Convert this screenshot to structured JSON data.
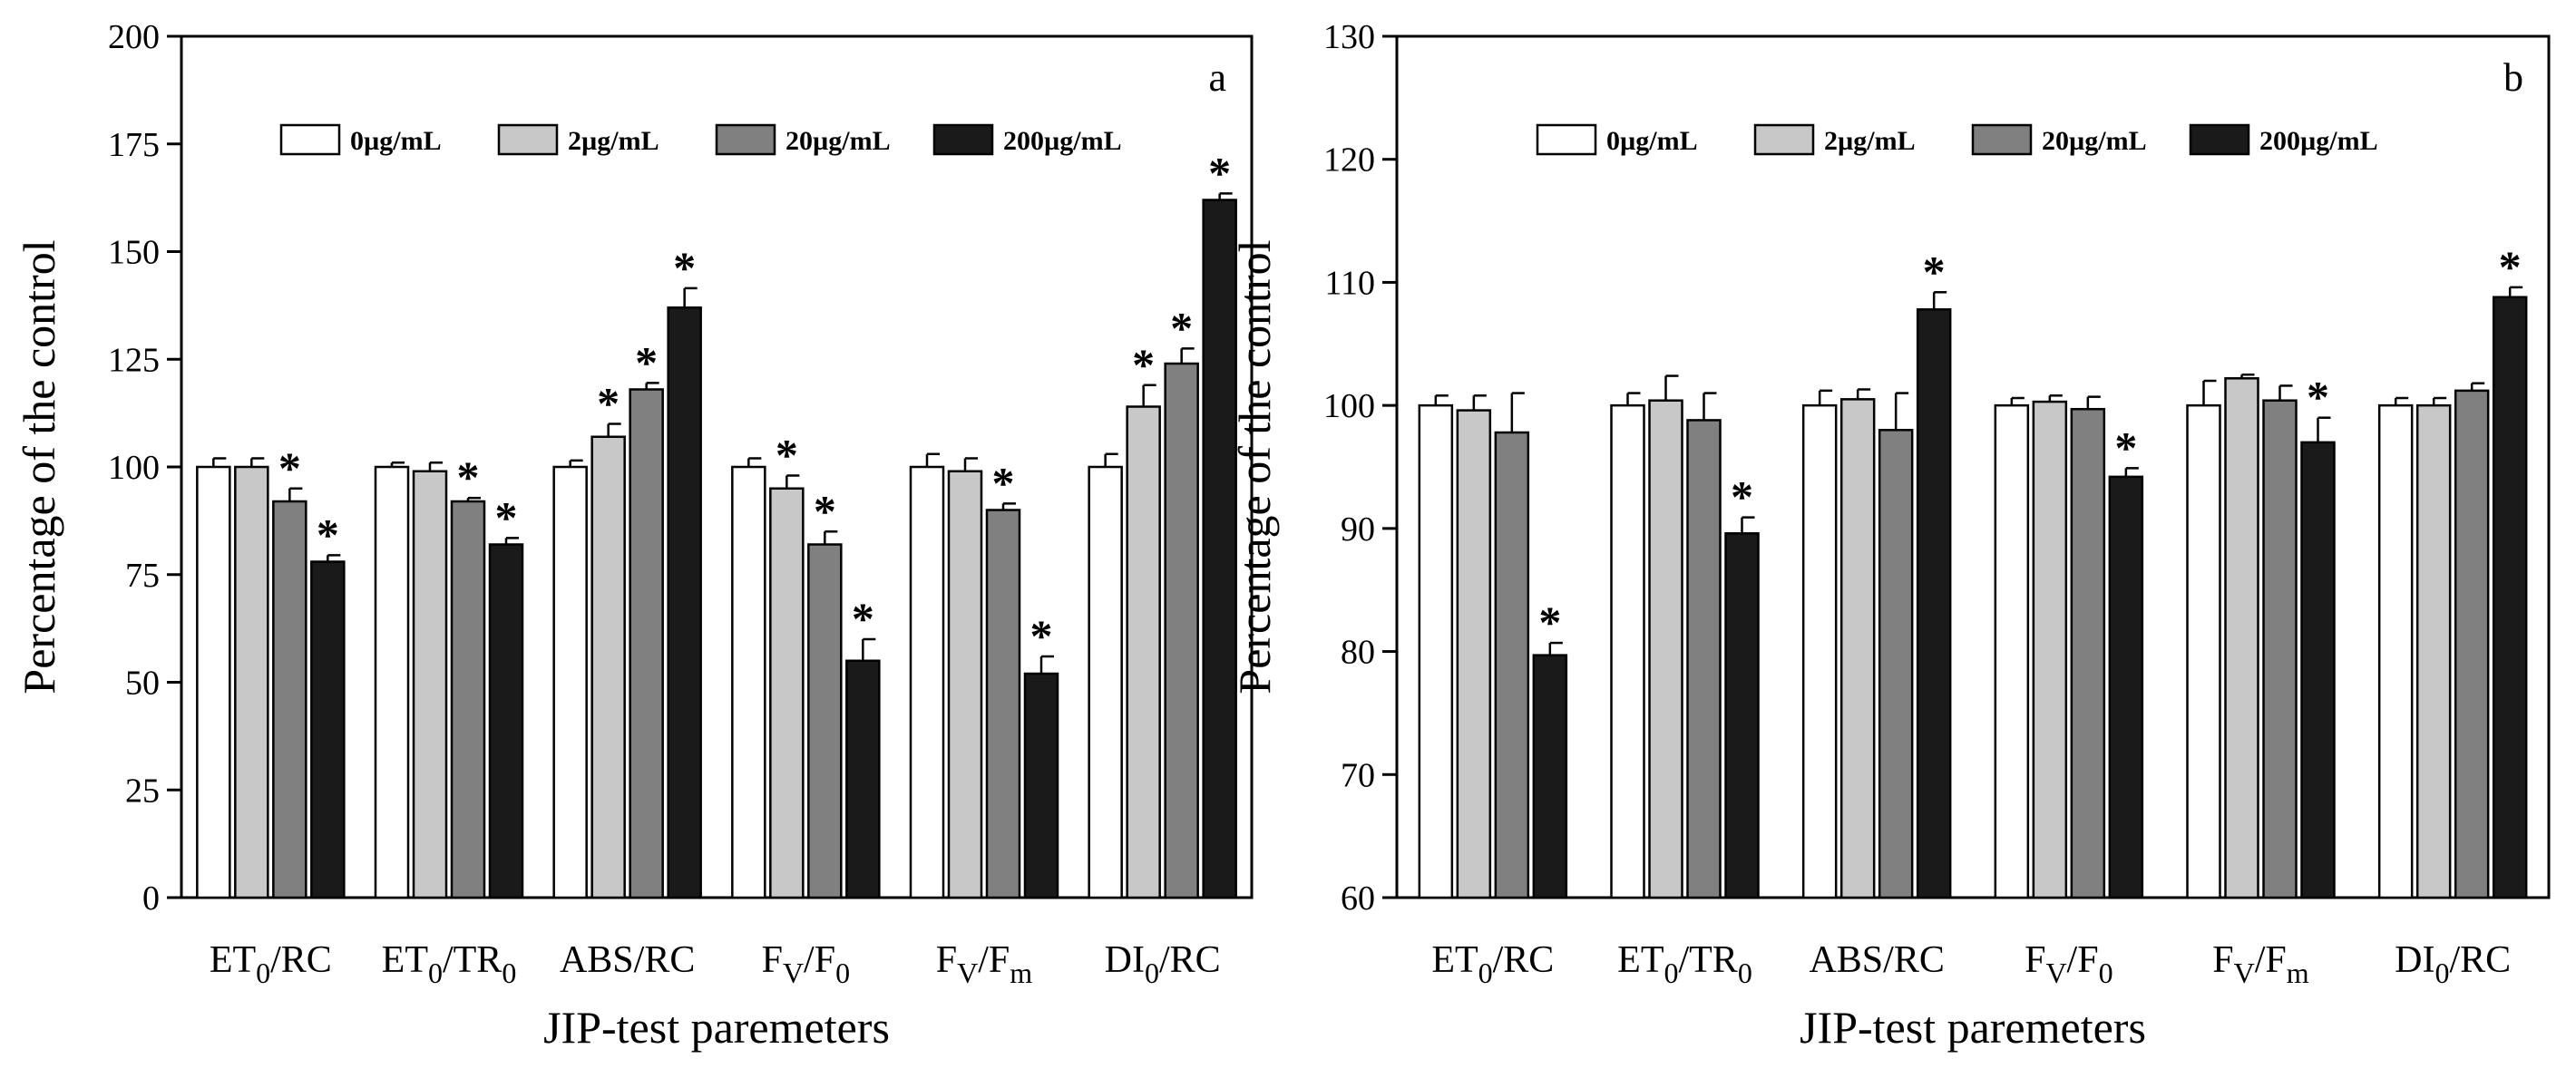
{
  "chart_data": [
    {
      "type": "bar",
      "panel_label": "a",
      "xlabel": "JIP-test paremeters",
      "ylabel": "Percentage of the control",
      "ylim": [
        0,
        200
      ],
      "yticks": [
        0,
        25,
        50,
        75,
        100,
        125,
        150,
        175,
        200
      ],
      "legend_position": "top",
      "categories": [
        {
          "main": "ET",
          "sub": "0",
          "rest": "/RC"
        },
        {
          "main": "ET",
          "sub": "0",
          "rest": "/TR",
          "sub2": "0"
        },
        {
          "main": "ABS/RC"
        },
        {
          "main": "F",
          "sub": "V",
          "rest": "/F",
          "sub2": "0"
        },
        {
          "main": "F",
          "sub": "V",
          "rest": "/F",
          "sub2": "m"
        },
        {
          "main": "DI",
          "sub": "0",
          "rest": "/RC"
        }
      ],
      "series": [
        {
          "name": "0µg/mL",
          "color": "#ffffff",
          "values": [
            100,
            100,
            100,
            100,
            100,
            100
          ],
          "errors": [
            2,
            1,
            1.5,
            2,
            3,
            3
          ],
          "significant": [
            false,
            false,
            false,
            false,
            false,
            false
          ]
        },
        {
          "name": "2µg/mL",
          "color": "#c8c8c8",
          "values": [
            100,
            99,
            107,
            95,
            99,
            114
          ],
          "errors": [
            2,
            2,
            3,
            3,
            3,
            5
          ],
          "significant": [
            false,
            false,
            true,
            true,
            false,
            true
          ]
        },
        {
          "name": "20µg/mL",
          "color": "#808080",
          "values": [
            92,
            92,
            118,
            82,
            90,
            124
          ],
          "errors": [
            3,
            0.8,
            1.5,
            3,
            1.5,
            3.5
          ],
          "significant": [
            true,
            true,
            true,
            true,
            true,
            true
          ]
        },
        {
          "name": "200µg/mL",
          "color": "#1a1a1a",
          "values": [
            78,
            82,
            137,
            55,
            52,
            162
          ],
          "errors": [
            1.5,
            1.5,
            4.5,
            5,
            4,
            1.5
          ],
          "significant": [
            true,
            true,
            true,
            true,
            true,
            true
          ]
        }
      ],
      "annotation_symbol": "*"
    },
    {
      "type": "bar",
      "panel_label": "b",
      "xlabel": "JIP-test paremeters",
      "ylabel": "Percentage of the control",
      "ylim": [
        60,
        130
      ],
      "yticks": [
        60,
        70,
        80,
        90,
        100,
        110,
        120,
        130
      ],
      "legend_position": "top",
      "categories": [
        {
          "main": "ET",
          "sub": "0",
          "rest": "/RC"
        },
        {
          "main": "ET",
          "sub": "0",
          "rest": "/TR",
          "sub2": "0"
        },
        {
          "main": "ABS/RC"
        },
        {
          "main": "F",
          "sub": "V",
          "rest": "/F",
          "sub2": "0"
        },
        {
          "main": "F",
          "sub": "V",
          "rest": "/F",
          "sub2": "m"
        },
        {
          "main": "DI",
          "sub": "0",
          "rest": "/RC"
        }
      ],
      "series": [
        {
          "name": "0µg/mL",
          "color": "#ffffff",
          "values": [
            100,
            100,
            100,
            100,
            100,
            100
          ],
          "errors": [
            0.8,
            1,
            1.2,
            0.6,
            2,
            0.6
          ],
          "significant": [
            false,
            false,
            false,
            false,
            false,
            false
          ]
        },
        {
          "name": "2µg/mL",
          "color": "#c8c8c8",
          "values": [
            99.6,
            100.4,
            100.5,
            100.3,
            102.2,
            100
          ],
          "errors": [
            1.2,
            2,
            0.8,
            0.5,
            0.3,
            0.6
          ],
          "significant": [
            false,
            false,
            false,
            false,
            false,
            false
          ]
        },
        {
          "name": "20µg/mL",
          "color": "#808080",
          "values": [
            97.8,
            98.8,
            98,
            99.7,
            100.4,
            101.2
          ],
          "errors": [
            3.2,
            2.2,
            3,
            1,
            1.2,
            0.6
          ],
          "significant": [
            false,
            false,
            false,
            false,
            false,
            false
          ]
        },
        {
          "name": "200µg/mL",
          "color": "#1a1a1a",
          "values": [
            79.7,
            89.6,
            107.8,
            94.2,
            97,
            108.8
          ],
          "errors": [
            1,
            1.3,
            1.4,
            0.7,
            2,
            0.8
          ],
          "significant": [
            true,
            true,
            true,
            true,
            true,
            true
          ]
        }
      ],
      "annotation_symbol": "*"
    }
  ]
}
